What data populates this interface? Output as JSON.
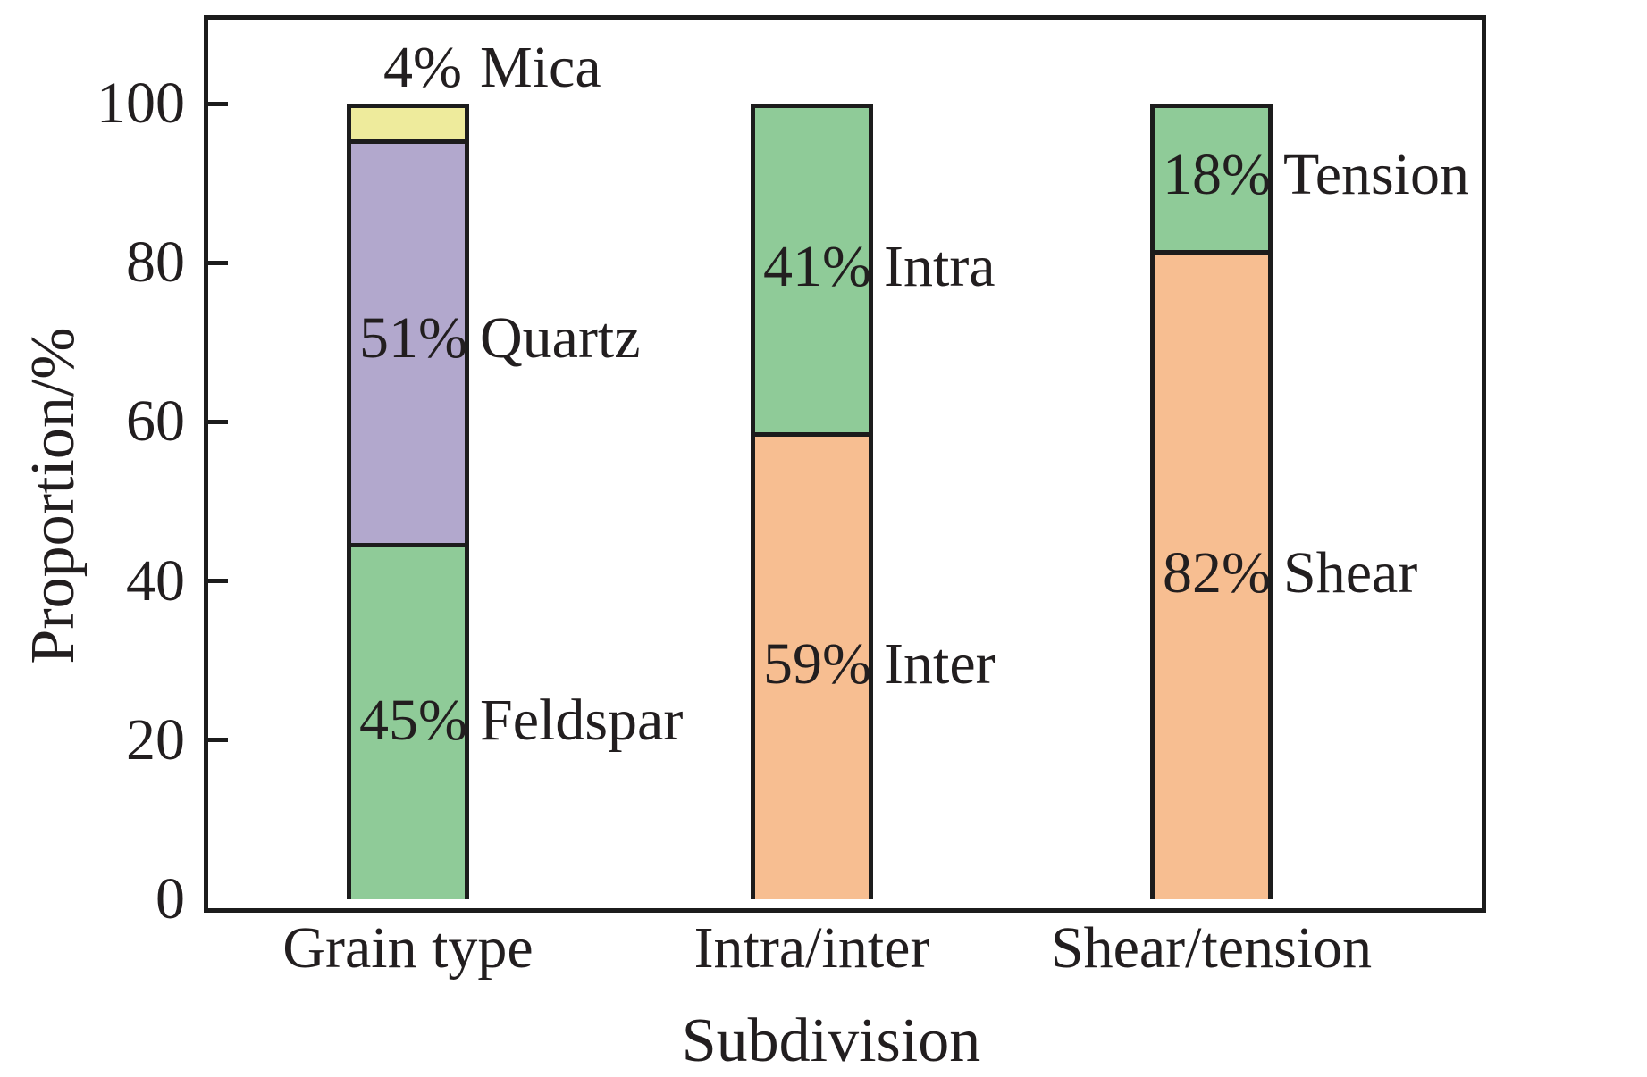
{
  "chart_data": {
    "type": "bar",
    "stacked": true,
    "title": "",
    "xlabel": "Subdivision",
    "ylabel": "Proportion/%",
    "ylim": [
      0,
      110
    ],
    "yticks": [
      0,
      20,
      40,
      60,
      80,
      100
    ],
    "grid": false,
    "legend": false,
    "legend_position": "none",
    "categories": [
      "Grain type",
      "Intra/inter",
      "Shear/tension"
    ],
    "bars": [
      {
        "category": "Grain type",
        "segments": [
          {
            "name": "Feldspar",
            "value": 45,
            "percent_label": "45%",
            "color_key": "green",
            "label_placement": "inside-center"
          },
          {
            "name": "Quartz",
            "value": 51,
            "percent_label": "51%",
            "color_key": "purple",
            "label_placement": "inside-center"
          },
          {
            "name": "Mica",
            "value": 4,
            "percent_label": "4%",
            "color_key": "yellow",
            "label_placement": "above-bar"
          }
        ]
      },
      {
        "category": "Intra/inter",
        "segments": [
          {
            "name": "Inter",
            "value": 59,
            "percent_label": "59%",
            "color_key": "orange",
            "label_placement": "inside-center"
          },
          {
            "name": "Intra",
            "value": 41,
            "percent_label": "41%",
            "color_key": "green",
            "label_placement": "inside-center"
          }
        ]
      },
      {
        "category": "Shear/tension",
        "segments": [
          {
            "name": "Shear",
            "value": 82,
            "percent_label": "82%",
            "color_key": "orange",
            "label_placement": "inside-center"
          },
          {
            "name": "Tension",
            "value": 18,
            "percent_label": "18%",
            "color_key": "green",
            "label_placement": "inside-center"
          }
        ]
      }
    ],
    "colors": {
      "green": "#8FCB98",
      "purple": "#B2A8CD",
      "yellow": "#EEEB9C",
      "orange": "#F7BE91",
      "axis": "#1C1C1C",
      "text": "#221E1F"
    }
  }
}
